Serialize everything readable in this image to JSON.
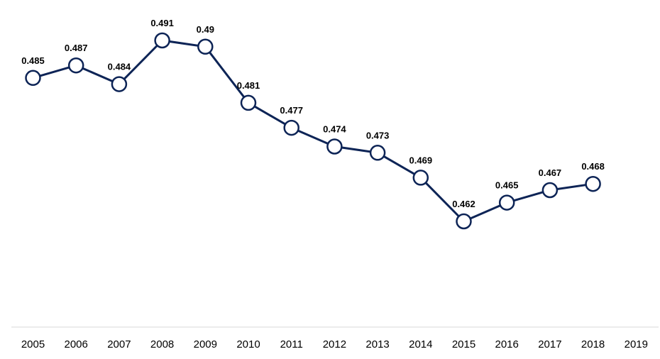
{
  "chart_data": {
    "type": "line",
    "title": "",
    "xlabel": "",
    "ylabel": "",
    "categories": [
      "2005",
      "2006",
      "2007",
      "2008",
      "2009",
      "2010",
      "2011",
      "2012",
      "2013",
      "2014",
      "2015",
      "2016",
      "2017",
      "2018",
      "2019"
    ],
    "series": [
      {
        "values": [
          0.485,
          0.487,
          0.484,
          0.491,
          0.49,
          0.481,
          0.477,
          0.474,
          0.473,
          0.469,
          0.462,
          0.465,
          0.467,
          0.468,
          null
        ],
        "labels": [
          "0.485",
          "0.487",
          "0.484",
          "0.491",
          "0.49",
          "0.481",
          "0.477",
          "0.474",
          "0.473",
          "0.469",
          "0.462",
          "0.465",
          "0.467",
          "0.468",
          ""
        ]
      }
    ],
    "ylim": [
      0.445,
      0.496
    ],
    "grid": false,
    "legend": "none",
    "colors": {
      "line": "#0d2456",
      "marker_fill": "#ffffff",
      "axis": "#d9d9d9"
    }
  }
}
